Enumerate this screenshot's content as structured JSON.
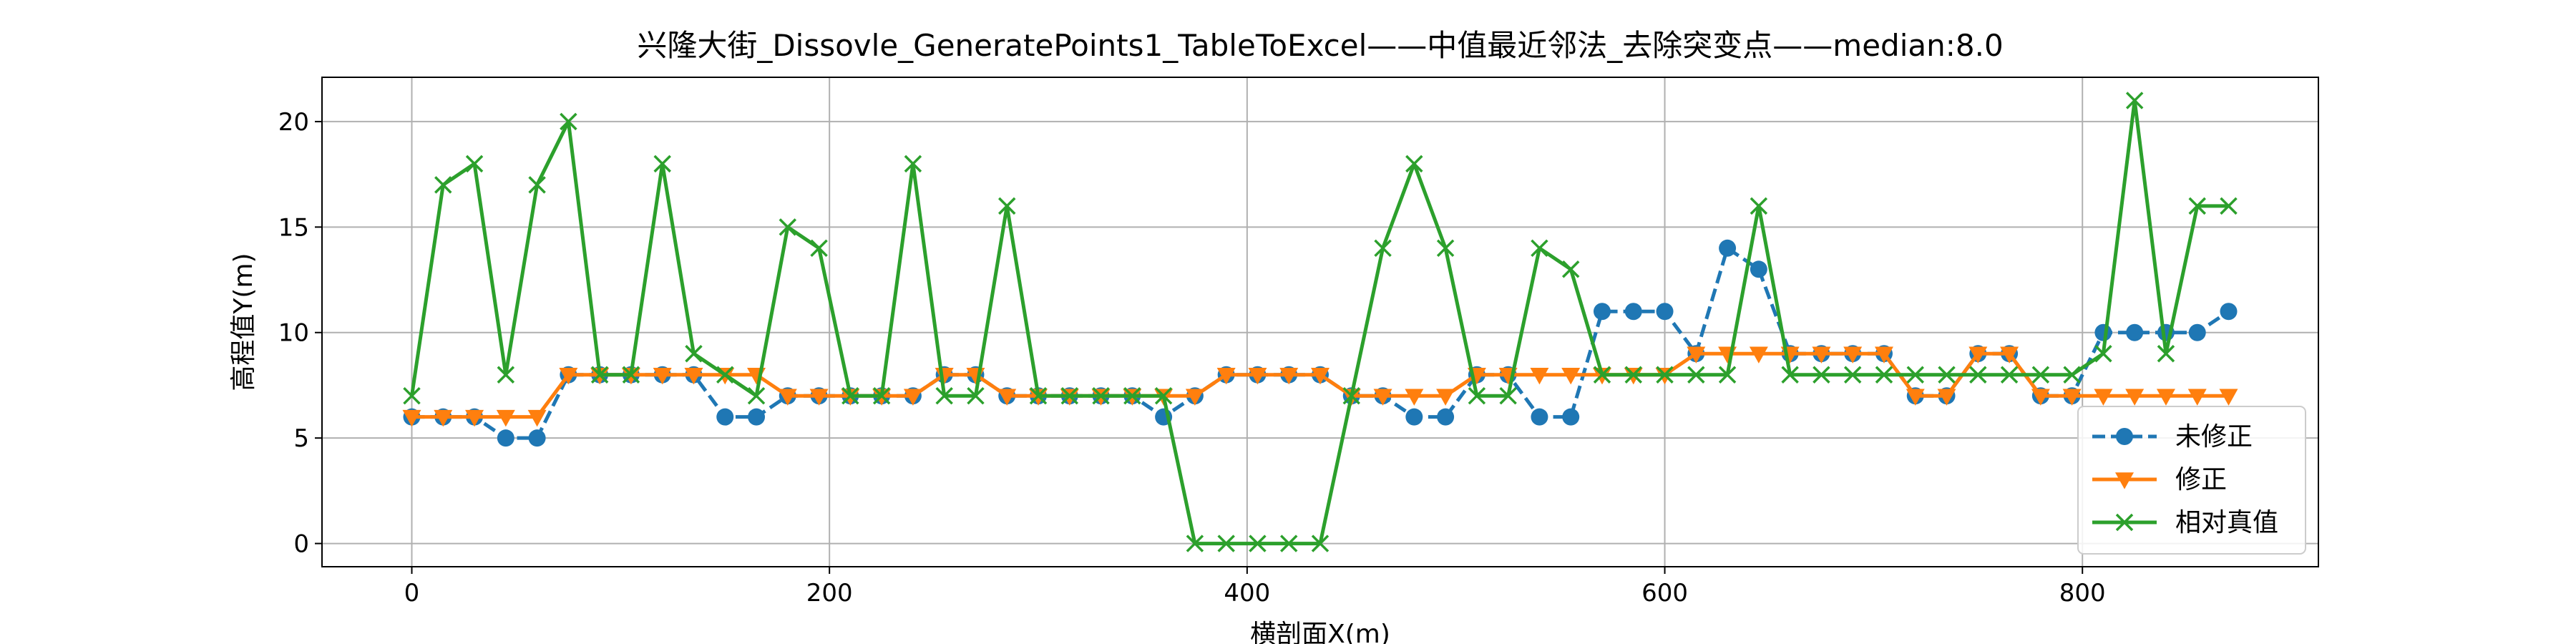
{
  "chart_data": {
    "type": "line",
    "title": "兴隆大街_Dissovle_GeneratePoints1_TableToExcel——中值最近邻法_去除突变点——median:8.0",
    "xlabel": "横剖面X(m)",
    "ylabel": "高程值Y(m)",
    "xlim": [
      -43,
      913
    ],
    "ylim": [
      -1.1,
      22.1
    ],
    "xticks": [
      0,
      200,
      400,
      600,
      800
    ],
    "yticks": [
      0,
      5,
      10,
      15,
      20
    ],
    "grid": true,
    "legend_position": "lower-right",
    "x": [
      0,
      15,
      30,
      45,
      60,
      75,
      90,
      105,
      120,
      135,
      150,
      165,
      180,
      195,
      210,
      225,
      240,
      255,
      270,
      285,
      300,
      315,
      330,
      345,
      360,
      375,
      390,
      405,
      420,
      435,
      450,
      465,
      480,
      495,
      510,
      525,
      540,
      555,
      570,
      585,
      600,
      615,
      630,
      645,
      660,
      675,
      690,
      705,
      720,
      735,
      750,
      765,
      780,
      795,
      810,
      825,
      840,
      855,
      870
    ],
    "series": [
      {
        "name": "未修正",
        "color": "#1f77b4",
        "line_style": "dashed",
        "marker": "circle",
        "values": [
          6,
          6,
          6,
          5,
          5,
          8,
          8,
          8,
          8,
          8,
          6,
          6,
          7,
          7,
          7,
          7,
          7,
          8,
          8,
          7,
          7,
          7,
          7,
          7,
          6,
          7,
          8,
          8,
          8,
          8,
          7,
          7,
          6,
          6,
          8,
          8,
          6,
          6,
          11,
          11,
          11,
          9,
          14,
          13,
          9,
          9,
          9,
          9,
          7,
          7,
          9,
          9,
          7,
          7,
          10,
          10,
          10,
          10,
          11
        ]
      },
      {
        "name": "修正",
        "color": "#ff7f0e",
        "line_style": "solid",
        "marker": "triangle-down",
        "values": [
          6,
          6,
          6,
          6,
          6,
          8,
          8,
          8,
          8,
          8,
          8,
          8,
          7,
          7,
          7,
          7,
          7,
          8,
          8,
          7,
          7,
          7,
          7,
          7,
          7,
          7,
          8,
          8,
          8,
          8,
          7,
          7,
          7,
          7,
          8,
          8,
          8,
          8,
          8,
          8,
          8,
          9,
          9,
          9,
          9,
          9,
          9,
          9,
          7,
          7,
          9,
          9,
          7,
          7,
          7,
          7,
          7,
          7,
          7
        ]
      },
      {
        "name": "相对真值",
        "color": "#2ca02c",
        "line_style": "solid",
        "marker": "x",
        "values": [
          7,
          17,
          18,
          8,
          17,
          20,
          8,
          8,
          18,
          9,
          8,
          7,
          15,
          14,
          7,
          7,
          18,
          7,
          7,
          16,
          7,
          7,
          7,
          7,
          7,
          0,
          0,
          0,
          0,
          0,
          7,
          14,
          18,
          14,
          7,
          7,
          14,
          13,
          8,
          8,
          8,
          8,
          8,
          16,
          8,
          8,
          8,
          8,
          8,
          8,
          8,
          8,
          8,
          8,
          9,
          21,
          9,
          16,
          16
        ]
      }
    ]
  }
}
